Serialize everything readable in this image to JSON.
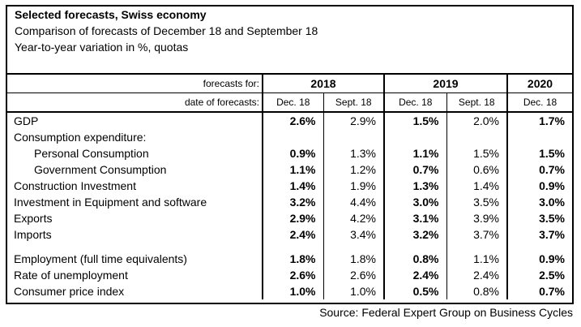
{
  "header": {
    "title": "Selected forecasts, Swiss economy",
    "subtitle": "Comparison of forecasts of December 18 and September 18",
    "note": "Year-to-year variation in %, quotas"
  },
  "columns": {
    "forecasts_for_label": "forecasts for:",
    "date_label": "date of forecasts:",
    "years": [
      "2018",
      "2019",
      "2020"
    ],
    "dates": [
      "Dec. 18",
      "Sept. 18",
      "Dec. 18",
      "Sept. 18",
      "Dec. 18"
    ]
  },
  "rows": [
    {
      "label": "GDP",
      "values": [
        "2.6%",
        "2.9%",
        "1.5%",
        "2.0%",
        "1.7%"
      ]
    },
    {
      "label": "Consumption expenditure:",
      "values": []
    },
    {
      "label": "Personal Consumption",
      "values": [
        "0.9%",
        "1.3%",
        "1.1%",
        "1.5%",
        "1.5%"
      ]
    },
    {
      "label": "Government Consumption",
      "values": [
        "1.1%",
        "1.2%",
        "0.7%",
        "0.6%",
        "0.7%"
      ]
    },
    {
      "label": "Construction Investment",
      "values": [
        "1.4%",
        "1.9%",
        "1.3%",
        "1.4%",
        "0.9%"
      ]
    },
    {
      "label": "Investment in Equipment and software",
      "values": [
        "3.2%",
        "4.4%",
        "3.0%",
        "3.5%",
        "3.0%"
      ]
    },
    {
      "label": "Exports",
      "values": [
        "2.9%",
        "4.2%",
        "3.1%",
        "3.9%",
        "3.5%"
      ]
    },
    {
      "label": "Imports",
      "values": [
        "2.4%",
        "3.4%",
        "3.2%",
        "3.7%",
        "3.7%"
      ]
    },
    {
      "label": "Employment (full time equivalents)",
      "values": [
        "1.8%",
        "1.8%",
        "0.8%",
        "1.1%",
        "0.9%"
      ]
    },
    {
      "label": "Rate of unemployment",
      "values": [
        "2.6%",
        "2.6%",
        "2.4%",
        "2.4%",
        "2.5%"
      ]
    },
    {
      "label": "Consumer price index",
      "values": [
        "1.0%",
        "1.0%",
        "0.5%",
        "0.8%",
        "0.7%"
      ]
    }
  ],
  "source": "Source: Federal Expert Group on Business Cycles"
}
